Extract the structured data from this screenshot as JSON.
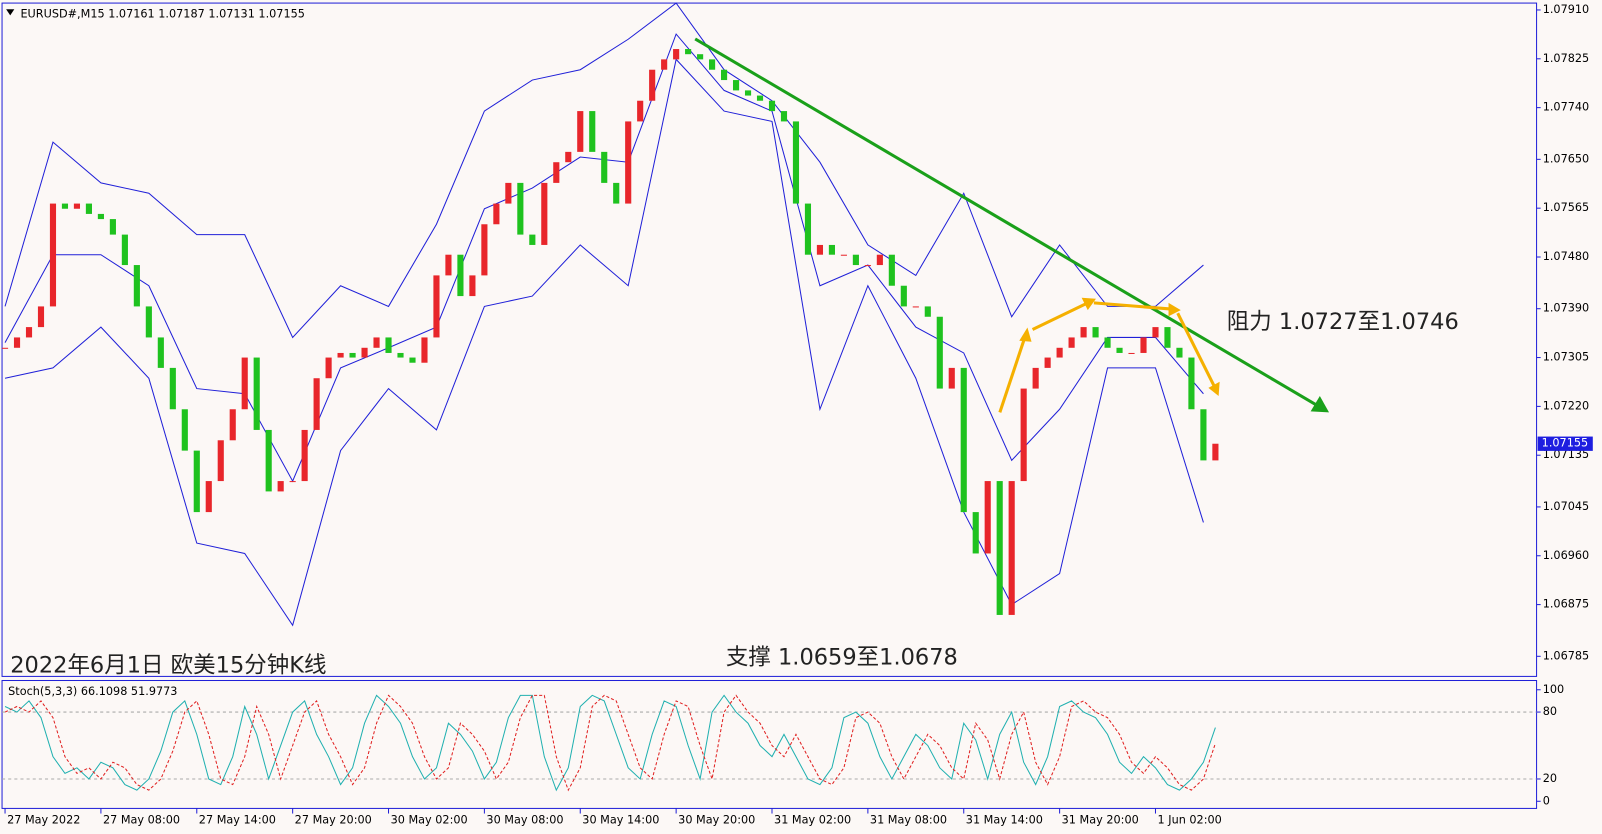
{
  "chart_data": [
    {
      "type": "candlestick",
      "title": "EURUSD#,M15  1.07161 1.07187 1.07131 1.07155",
      "up_color": "#e8262b",
      "down_color": "#1fc21f",
      "band_color": "#2020d8",
      "xlim": [
        -0.25,
        127.8
      ],
      "xticks": [
        {
          "value": 0,
          "label": "27 May 2022"
        },
        {
          "value": 8,
          "label": "27 May 08:00"
        },
        {
          "value": 16,
          "label": "27 May 14:00"
        },
        {
          "value": 24,
          "label": "27 May 20:00"
        },
        {
          "value": 32,
          "label": "30 May 02:00"
        },
        {
          "value": 40,
          "label": "30 May 08:00"
        },
        {
          "value": 48,
          "label": "30 May 14:00"
        },
        {
          "value": 56,
          "label": "30 May 20:00"
        },
        {
          "value": 64,
          "label": "31 May 02:00"
        },
        {
          "value": 72,
          "label": "31 May 08:00"
        },
        {
          "value": 80,
          "label": "31 May 14:00"
        },
        {
          "value": 88,
          "label": "31 May 20:00"
        },
        {
          "value": 96,
          "label": "1 Jun 02:00"
        }
      ],
      "ylim": [
        1.0675,
        1.07922
      ],
      "yticks": [
        {
          "value": 1.0791,
          "label": "1.07910"
        },
        1.07825,
        {
          "value": 1.0774,
          "label": "1.07740"
        },
        {
          "value": 1.0765,
          "label": "1.07650"
        },
        1.07565,
        {
          "value": 1.0748,
          "label": "1.07480"
        },
        {
          "value": 1.0739,
          "label": "1.07390"
        },
        1.07305,
        {
          "value": 1.0722,
          "label": "1.07220"
        },
        1.07135,
        1.07045,
        {
          "value": 1.0696,
          "label": "1.06960"
        },
        1.06875,
        1.06785
      ],
      "closes": [
        1.07322,
        1.0734,
        1.07358,
        1.07394,
        1.07573,
        1.07564,
        1.07573,
        1.07555,
        1.07546,
        1.07519,
        1.07466,
        1.07394,
        1.0734,
        1.07287,
        1.07215,
        1.07143,
        1.07036,
        1.0709,
        1.07161,
        1.07215,
        1.07305,
        1.07179,
        1.07072,
        1.0709,
        1.0709,
        1.07179,
        1.07269,
        1.07305,
        1.07313,
        1.07305,
        1.07322,
        1.0734,
        1.07313,
        1.07305,
        1.07296,
        1.0734,
        1.07448,
        1.07484,
        1.07412,
        1.07448,
        1.07537,
        1.07573,
        1.07609,
        1.07519,
        1.07501,
        1.07609,
        1.07645,
        1.07663,
        1.07734,
        1.07663,
        1.07609,
        1.07573,
        1.07716,
        1.07752,
        1.07806,
        1.07824,
        1.07842,
        1.07833,
        1.07824,
        1.07806,
        1.07788,
        1.0777,
        1.07761,
        1.07752,
        1.07734,
        1.07716,
        1.07573,
        1.07484,
        1.07501,
        1.07484,
        1.07484,
        1.07466,
        1.07466,
        1.07484,
        1.0743,
        1.07394,
        1.07394,
        1.07376,
        1.07251,
        1.07287,
        1.07036,
        1.06964,
        1.0709,
        1.06857,
        1.0709,
        1.07251,
        1.07287,
        1.07305,
        1.07322,
        1.0734,
        1.07358,
        1.0734,
        1.07322,
        1.07313,
        1.07313,
        1.0734,
        1.07358,
        1.07322,
        1.07305,
        1.07215,
        1.07126,
        1.07155
      ],
      "bands": {
        "x": [
          0,
          4,
          8,
          12,
          16,
          20,
          24,
          28,
          32,
          36,
          40,
          44,
          48,
          52,
          56,
          60,
          64,
          68,
          72,
          76,
          80,
          84,
          88,
          92,
          96,
          100
        ],
        "upper": [
          1.07394,
          1.0768,
          1.07609,
          1.07591,
          1.07519,
          1.07519,
          1.0734,
          1.0743,
          1.07394,
          1.07537,
          1.07734,
          1.07788,
          1.07806,
          1.07859,
          1.07922,
          1.07806,
          1.07752,
          1.07645,
          1.07501,
          1.07448,
          1.07591,
          1.07376,
          1.07501,
          1.07394,
          1.07394,
          1.07466
        ],
        "middle": [
          1.07331,
          1.07484,
          1.07484,
          1.0743,
          1.07251,
          1.07242,
          1.0709,
          1.07287,
          1.07322,
          1.07358,
          1.07564,
          1.076,
          1.07654,
          1.07645,
          1.07868,
          1.0777,
          1.07734,
          1.0743,
          1.07466,
          1.07358,
          1.07313,
          1.07126,
          1.07215,
          1.0734,
          1.0734,
          1.07242
        ],
        "lower": [
          1.07269,
          1.07287,
          1.07358,
          1.07269,
          1.06982,
          1.06964,
          1.06839,
          1.07143,
          1.07251,
          1.07179,
          1.07394,
          1.07412,
          1.07501,
          1.0743,
          1.07824,
          1.07734,
          1.07716,
          1.07215,
          1.0743,
          1.07269,
          1.07036,
          1.06875,
          1.06929,
          1.07287,
          1.07287,
          1.07018
        ]
      },
      "price_tag": "1.07155"
    },
    {
      "type": "line",
      "title": "Stoch(5,3,3) 66.1098 51.9773",
      "xlim": [
        -0.25,
        127.8
      ],
      "ylim": [
        -6.4,
        108.3
      ],
      "yticks": [
        100,
        80,
        20,
        0
      ],
      "levels": [
        80,
        20
      ],
      "series": [
        {
          "color": "#20b0b0",
          "dash": false,
          "values": [
            85,
            80,
            90,
            75,
            40,
            25,
            30,
            20,
            35,
            30,
            15,
            10,
            20,
            45,
            80,
            90,
            60,
            20,
            15,
            40,
            85,
            60,
            20,
            50,
            80,
            90,
            60,
            40,
            15,
            30,
            70,
            95,
            85,
            70,
            40,
            20,
            30,
            70,
            60,
            45,
            20,
            35,
            75,
            95,
            95,
            40,
            10,
            30,
            85,
            95,
            90,
            60,
            30,
            20,
            60,
            90,
            85,
            50,
            20,
            80,
            95,
            80,
            70,
            50,
            40,
            60,
            40,
            20,
            15,
            30,
            75,
            80,
            70,
            40,
            20,
            40,
            60,
            50,
            30,
            20,
            70,
            55,
            20,
            60,
            80,
            35,
            15,
            40,
            85,
            90,
            80,
            75,
            60,
            35,
            25,
            40,
            30,
            15,
            10,
            20,
            35,
            66.1098
          ]
        },
        {
          "color": "#e02020",
          "dash": true,
          "values": [
            80,
            85,
            80,
            90,
            75,
            40,
            25,
            30,
            20,
            35,
            30,
            15,
            10,
            20,
            45,
            80,
            90,
            60,
            20,
            15,
            40,
            85,
            60,
            20,
            50,
            80,
            90,
            60,
            40,
            15,
            30,
            70,
            95,
            85,
            70,
            40,
            20,
            30,
            70,
            60,
            45,
            20,
            35,
            75,
            95,
            95,
            40,
            10,
            30,
            85,
            95,
            90,
            60,
            30,
            20,
            60,
            90,
            85,
            50,
            20,
            80,
            95,
            80,
            70,
            50,
            40,
            60,
            40,
            20,
            15,
            30,
            75,
            80,
            70,
            40,
            20,
            40,
            60,
            50,
            30,
            20,
            70,
            55,
            20,
            60,
            80,
            35,
            15,
            40,
            85,
            90,
            80,
            75,
            60,
            35,
            25,
            40,
            30,
            15,
            10,
            20,
            51.9773
          ]
        }
      ]
    }
  ],
  "annotations": [
    "2022年6月1日 欧美15分钟K线",
    "支撑 1.0659至1.0678",
    "阻力 1.0727至1.0746"
  ]
}
